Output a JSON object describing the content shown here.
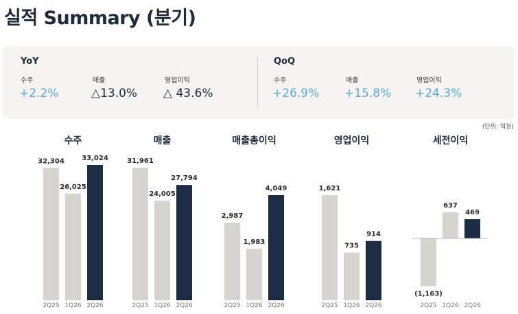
{
  "page": {
    "title": "실적 Summary (분기)",
    "unit_note": "(단위: 억원)"
  },
  "summary": {
    "yoy": {
      "title": "YoY",
      "items": [
        {
          "label": "수주",
          "value": "+2.2%"
        },
        {
          "label": "매출",
          "value": "△13.0%"
        },
        {
          "label": "영업이익",
          "value": "△ 43.6%"
        }
      ]
    },
    "qoq": {
      "title": "QoQ",
      "items": [
        {
          "label": "수주",
          "value": "+26.9%"
        },
        {
          "label": "매출",
          "value": "+15.8%"
        },
        {
          "label": "영업이익",
          "value": "+24.3%"
        }
      ]
    }
  },
  "colors": {
    "positive": "#5aaad6",
    "negative": "#1f2a3a",
    "bar_past": "#d6d4ce",
    "bar_current": "#1c2c45"
  },
  "chart_data": [
    {
      "type": "bar",
      "title": "수주",
      "categories": [
        "2Q25",
        "1Q26",
        "2Q26"
      ],
      "values": [
        32304,
        26025,
        33024
      ],
      "labels": [
        "32,304",
        "26,025",
        "33,024"
      ]
    },
    {
      "type": "bar",
      "title": "매출",
      "categories": [
        "2Q25",
        "1Q26",
        "2Q26"
      ],
      "values": [
        31961,
        24005,
        27794
      ],
      "labels": [
        "31,961",
        "24,005",
        "27,794"
      ]
    },
    {
      "type": "bar",
      "title": "매출총이익",
      "categories": [
        "2Q25",
        "1Q26",
        "2Q26"
      ],
      "values": [
        2987,
        1983,
        4049
      ],
      "labels": [
        "2,987",
        "1,983",
        "4,049"
      ]
    },
    {
      "type": "bar",
      "title": "영업이익",
      "categories": [
        "2Q25",
        "1Q26",
        "2Q26"
      ],
      "values": [
        1621,
        735,
        914
      ],
      "labels": [
        "1,621",
        "735",
        "914"
      ]
    },
    {
      "type": "bar",
      "title": "세전이익",
      "categories": [
        "2Q25",
        "1Q26",
        "2Q26"
      ],
      "values": [
        -1163,
        637,
        469
      ],
      "labels": [
        "(1,163)",
        "637",
        "469"
      ]
    }
  ]
}
